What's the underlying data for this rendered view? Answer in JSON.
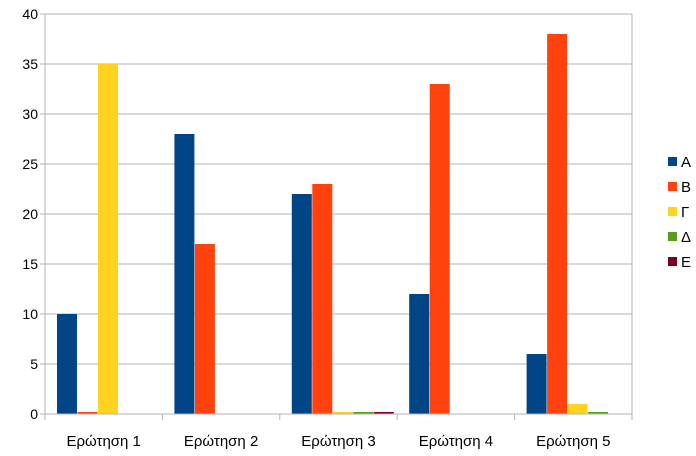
{
  "chart_data": {
    "type": "bar",
    "categories": [
      "Ερώτηση 1",
      "Ερώτηση 2",
      "Ερώτηση 3",
      "Ερώτηση 4",
      "Ερώτηση 5"
    ],
    "series": [
      {
        "name": "A",
        "color": "#004586",
        "values": [
          10,
          28,
          22,
          12,
          6
        ]
      },
      {
        "name": "B",
        "color": "#ff420e",
        "values": [
          0.2,
          17,
          23,
          33,
          38
        ]
      },
      {
        "name": "Γ",
        "color": "#ffd320",
        "values": [
          35,
          0,
          0.2,
          0,
          1
        ]
      },
      {
        "name": "Δ",
        "color": "#579d1c",
        "values": [
          0,
          0,
          0.2,
          0,
          0.2
        ]
      },
      {
        "name": "E",
        "color": "#7e0021",
        "values": [
          0,
          0,
          0.2,
          0,
          0
        ]
      }
    ],
    "ylim": [
      0,
      40
    ],
    "yticks": [
      0,
      5,
      10,
      15,
      20,
      25,
      30,
      35,
      40
    ],
    "grid": true,
    "legend_position": "right"
  }
}
